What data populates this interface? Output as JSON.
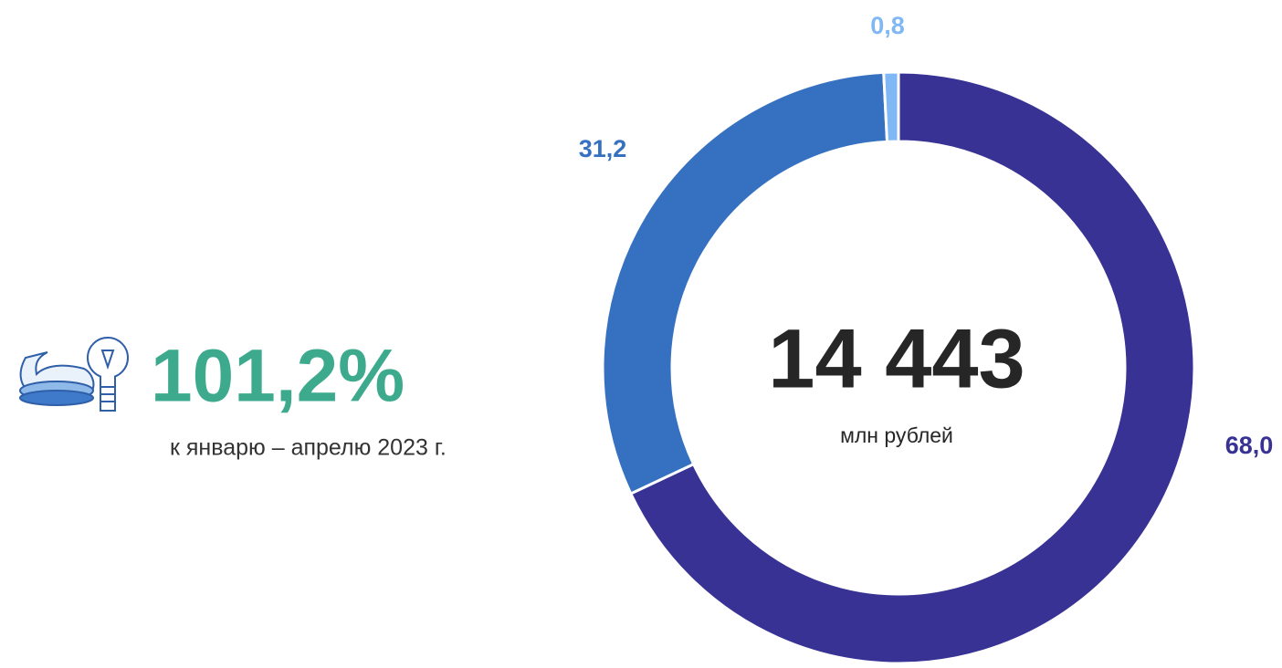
{
  "chart_data": {
    "type": "donut",
    "values": [
      68.0,
      31.2,
      0.8
    ],
    "value_labels": [
      "68,0",
      "31,2",
      "0,8"
    ],
    "colors": [
      "#373294",
      "#3671c1",
      "#7fb8f5"
    ],
    "center_value": "14 443",
    "center_label": "млн рублей",
    "annotation": {
      "value": "101,2%",
      "text": "к январю – апрелю 2023 г."
    }
  }
}
